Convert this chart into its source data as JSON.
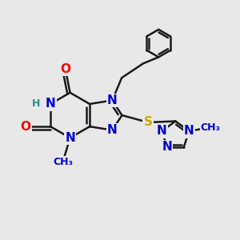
{
  "background_color": "#e8e8e8",
  "bond_color": "#1a1a1a",
  "bond_width": 1.8,
  "atom_colors": {
    "N": "#0000cc",
    "O": "#ff0000",
    "S": "#ccaa00",
    "H": "#2e8b8b",
    "C": "#1a1a1a"
  },
  "font_size_main": 11,
  "font_size_small": 9
}
